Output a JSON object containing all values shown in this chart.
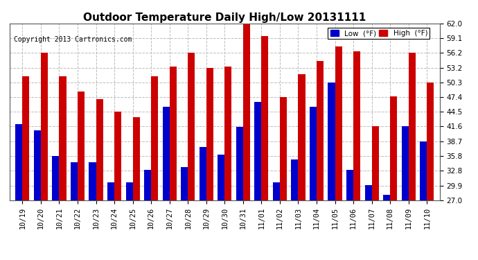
{
  "title": "Outdoor Temperature Daily High/Low 20131111",
  "copyright": "Copyright 2013 Cartronics.com",
  "legend_low": "Low  (°F)",
  "legend_high": "High  (°F)",
  "dates": [
    "10/19",
    "10/20",
    "10/21",
    "10/22",
    "10/23",
    "10/24",
    "10/25",
    "10/26",
    "10/27",
    "10/28",
    "10/29",
    "10/30",
    "10/31",
    "11/01",
    "11/02",
    "11/03",
    "11/04",
    "11/05",
    "11/06",
    "11/07",
    "11/08",
    "11/09",
    "11/10"
  ],
  "highs": [
    51.5,
    56.2,
    51.5,
    48.5,
    47.0,
    44.5,
    43.5,
    51.5,
    53.5,
    56.2,
    53.2,
    53.5,
    62.0,
    59.5,
    47.4,
    52.0,
    54.5,
    57.5,
    56.5,
    41.6,
    47.5,
    56.2,
    50.3
  ],
  "lows": [
    42.0,
    40.8,
    35.8,
    34.5,
    34.5,
    30.5,
    30.5,
    33.0,
    45.5,
    33.5,
    37.5,
    36.0,
    41.5,
    46.5,
    30.5,
    35.0,
    45.5,
    50.3,
    33.0,
    30.0,
    28.0,
    41.6,
    38.7
  ],
  "ylim": [
    27.0,
    62.0
  ],
  "yticks": [
    27.0,
    29.9,
    32.8,
    35.8,
    38.7,
    41.6,
    44.5,
    47.4,
    50.3,
    53.2,
    56.2,
    59.1,
    62.0
  ],
  "bar_width": 0.38,
  "low_color": "#0000cc",
  "high_color": "#cc0000",
  "background_color": "#ffffff",
  "grid_color": "#bbbbbb",
  "title_fontsize": 11,
  "tick_fontsize": 7.5,
  "copyright_fontsize": 7
}
